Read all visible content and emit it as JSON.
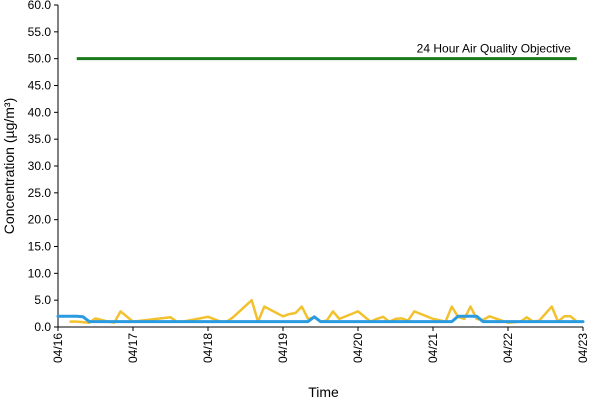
{
  "chart_data": {
    "type": "line",
    "title": "",
    "xlabel": "Time",
    "ylabel": "Concentration (µg/m³)",
    "ylim": [
      0,
      60
    ],
    "y_ticks": [
      "0.0",
      "5.0",
      "10.0",
      "15.0",
      "20.0",
      "25.0",
      "30.0",
      "35.0",
      "40.0",
      "45.0",
      "50.0",
      "55.0",
      "60.0"
    ],
    "x_ticks": [
      "04/16",
      "04/17",
      "04/18",
      "04/19",
      "04/20",
      "04/21",
      "04/22",
      "04/23"
    ],
    "xlim": [
      "04/16 00:00",
      "04/23 00:00"
    ],
    "grid": false,
    "legend": "none",
    "objective": {
      "label": "24 Hour Air Quality Objective",
      "value": 50.0,
      "x_start": "04/16 06:00",
      "x_end": "04/22 22:00",
      "color": "#1a7a1a"
    },
    "series": [
      {
        "color": "#f2c12e",
        "x": [
          "04/16 04:00",
          "04/16 06:00",
          "04/16 10:00",
          "04/16 12:00",
          "04/16 16:00",
          "04/16 18:00",
          "04/16 20:00",
          "04/17 00:00",
          "04/17 12:00",
          "04/17 14:00",
          "04/17 16:00",
          "04/18 00:00",
          "04/18 04:00",
          "04/18 06:00",
          "04/18 08:00",
          "04/18 14:00",
          "04/18 16:00",
          "04/18 18:00",
          "04/19 00:00",
          "04/19 02:00",
          "04/19 04:00",
          "04/19 06:00",
          "04/19 08:00",
          "04/19 10:00",
          "04/19 12:00",
          "04/19 14:00",
          "04/19 16:00",
          "04/19 18:00",
          "04/20 00:00",
          "04/20 04:00",
          "04/20 06:00",
          "04/20 08:00",
          "04/20 10:00",
          "04/20 12:00",
          "04/20 14:00",
          "04/20 16:00",
          "04/20 18:00",
          "04/21 00:00",
          "04/21 04:00",
          "04/21 06:00",
          "04/21 08:00",
          "04/21 10:00",
          "04/21 12:00",
          "04/21 14:00",
          "04/21 16:00",
          "04/21 18:00",
          "04/22 00:00",
          "04/22 04:00",
          "04/22 06:00",
          "04/22 08:00",
          "04/22 10:00",
          "04/22 14:00",
          "04/22 16:00",
          "04/22 18:00",
          "04/22 20:00",
          "04/22 22:00"
        ],
        "values": [
          1.0,
          1.0,
          0.8,
          1.6,
          1.0,
          0.8,
          2.9,
          1.0,
          1.8,
          1.0,
          1.0,
          1.9,
          1.0,
          1.0,
          1.8,
          5.0,
          1.0,
          3.8,
          2.0,
          2.4,
          2.6,
          3.8,
          1.5,
          1.8,
          1.0,
          1.2,
          2.9,
          1.5,
          2.9,
          1.0,
          1.5,
          1.9,
          1.0,
          1.5,
          1.6,
          1.2,
          2.9,
          1.5,
          1.0,
          3.8,
          1.9,
          1.5,
          3.8,
          1.5,
          1.3,
          2.0,
          0.8,
          1.0,
          1.8,
          1.0,
          1.2,
          3.8,
          1.0,
          2.0,
          2.0,
          1.0
        ]
      },
      {
        "color": "#2a9be0",
        "x": [
          "04/16 00:00",
          "04/16 06:00",
          "04/16 08:00",
          "04/16 10:00",
          "04/18 00:00",
          "04/19 00:00",
          "04/19 08:00",
          "04/19 10:00",
          "04/19 12:00",
          "04/19 14:00",
          "04/20 00:00",
          "04/21 00:00",
          "04/21 06:00",
          "04/21 08:00",
          "04/21 14:00",
          "04/21 16:00",
          "04/22 00:00",
          "04/23 00:00"
        ],
        "values": [
          2.0,
          2.0,
          1.9,
          1.0,
          1.0,
          1.0,
          1.0,
          1.9,
          1.0,
          1.0,
          1.0,
          1.0,
          1.0,
          2.0,
          2.0,
          1.0,
          1.0,
          1.0
        ]
      }
    ]
  }
}
